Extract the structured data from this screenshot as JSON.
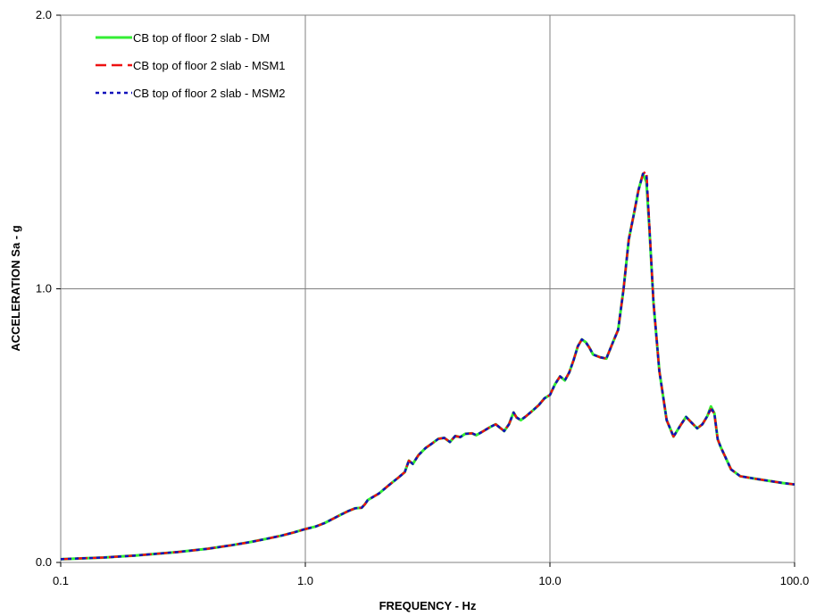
{
  "chart_data": {
    "type": "line",
    "xscale": "log",
    "xlim": [
      0.1,
      100.0
    ],
    "ylim": [
      0.0,
      2.0
    ],
    "xlabel": "FREQUENCY - Hz",
    "ylabel": "ACCELERATION Sa - g",
    "x_ticks": [
      "0.1",
      "1.0",
      "10.0",
      "100.0"
    ],
    "y_ticks": [
      "0.0",
      "1.0",
      "2.0"
    ],
    "grid": true,
    "legend_position": "top-left",
    "x": [
      0.1,
      0.15,
      0.2,
      0.3,
      0.4,
      0.5,
      0.6,
      0.7,
      0.8,
      0.9,
      1.0,
      1.1,
      1.2,
      1.3,
      1.4,
      1.5,
      1.6,
      1.7,
      1.75,
      1.8,
      2.0,
      2.2,
      2.4,
      2.55,
      2.65,
      2.75,
      2.9,
      3.1,
      3.3,
      3.5,
      3.7,
      3.9,
      4.1,
      4.3,
      4.5,
      4.8,
      5.0,
      5.3,
      5.7,
      6.0,
      6.5,
      6.8,
      7.1,
      7.3,
      7.6,
      8.0,
      8.5,
      9.0,
      9.5,
      10.0,
      10.5,
      11.0,
      11.5,
      12.0,
      12.5,
      13.0,
      13.5,
      14.0,
      14.5,
      15.0,
      16.0,
      17.0,
      18.0,
      19.0,
      20.0,
      21.0,
      22.0,
      23.0,
      24.0,
      24.8,
      25.5,
      26.5,
      28.0,
      30.0,
      32.0,
      34.0,
      36.0,
      38.0,
      40.0,
      42.0,
      44.0,
      45.5,
      47.0,
      48.5,
      50.0,
      55.0,
      60.0,
      70.0,
      80.0,
      90.0,
      100.0
    ],
    "series": [
      {
        "name": "CB top of floor 2 slab - DM",
        "color": "#33ee33",
        "dash": "solid",
        "values": [
          0.012,
          0.018,
          0.025,
          0.038,
          0.05,
          0.063,
          0.075,
          0.087,
          0.098,
          0.11,
          0.122,
          0.131,
          0.144,
          0.16,
          0.175,
          0.188,
          0.198,
          0.2,
          0.212,
          0.228,
          0.252,
          0.283,
          0.31,
          0.33,
          0.372,
          0.36,
          0.392,
          0.418,
          0.435,
          0.452,
          0.455,
          0.44,
          0.462,
          0.458,
          0.47,
          0.472,
          0.465,
          0.478,
          0.495,
          0.505,
          0.48,
          0.505,
          0.548,
          0.53,
          0.52,
          0.535,
          0.555,
          0.575,
          0.6,
          0.612,
          0.652,
          0.68,
          0.665,
          0.695,
          0.74,
          0.79,
          0.815,
          0.805,
          0.785,
          0.76,
          0.75,
          0.745,
          0.8,
          0.85,
          1.0,
          1.18,
          1.27,
          1.36,
          1.42,
          1.39,
          1.22,
          0.95,
          0.7,
          0.52,
          0.46,
          0.498,
          0.532,
          0.51,
          0.49,
          0.505,
          0.535,
          0.57,
          0.545,
          0.45,
          0.42,
          0.34,
          0.315,
          0.305,
          0.297,
          0.29,
          0.285
        ]
      },
      {
        "name": "CB top of floor 2 slab - MSM1",
        "color": "#ee1111",
        "dash": "long-dash",
        "values": [
          0.012,
          0.018,
          0.025,
          0.038,
          0.05,
          0.063,
          0.075,
          0.087,
          0.098,
          0.11,
          0.122,
          0.131,
          0.144,
          0.16,
          0.175,
          0.188,
          0.198,
          0.2,
          0.212,
          0.228,
          0.252,
          0.283,
          0.31,
          0.33,
          0.372,
          0.36,
          0.392,
          0.418,
          0.435,
          0.452,
          0.455,
          0.44,
          0.462,
          0.458,
          0.47,
          0.472,
          0.465,
          0.478,
          0.495,
          0.505,
          0.48,
          0.505,
          0.548,
          0.53,
          0.52,
          0.535,
          0.555,
          0.575,
          0.6,
          0.612,
          0.652,
          0.68,
          0.665,
          0.695,
          0.74,
          0.79,
          0.815,
          0.805,
          0.785,
          0.76,
          0.75,
          0.745,
          0.8,
          0.85,
          1.0,
          1.18,
          1.27,
          1.36,
          1.42,
          1.43,
          1.23,
          0.95,
          0.7,
          0.52,
          0.46,
          0.498,
          0.532,
          0.51,
          0.49,
          0.505,
          0.535,
          0.56,
          0.545,
          0.45,
          0.42,
          0.34,
          0.315,
          0.305,
          0.297,
          0.29,
          0.285
        ]
      },
      {
        "name": "CB top of floor 2 slab - MSM2",
        "color": "#1111bb",
        "dash": "short-dash",
        "values": [
          0.012,
          0.018,
          0.025,
          0.038,
          0.05,
          0.063,
          0.075,
          0.087,
          0.098,
          0.11,
          0.122,
          0.131,
          0.144,
          0.16,
          0.175,
          0.188,
          0.198,
          0.2,
          0.212,
          0.228,
          0.252,
          0.283,
          0.31,
          0.33,
          0.372,
          0.36,
          0.392,
          0.418,
          0.435,
          0.452,
          0.455,
          0.44,
          0.462,
          0.458,
          0.47,
          0.472,
          0.465,
          0.478,
          0.495,
          0.505,
          0.48,
          0.505,
          0.548,
          0.53,
          0.52,
          0.535,
          0.555,
          0.575,
          0.6,
          0.612,
          0.652,
          0.68,
          0.665,
          0.695,
          0.74,
          0.79,
          0.815,
          0.805,
          0.785,
          0.76,
          0.75,
          0.745,
          0.8,
          0.85,
          1.0,
          1.18,
          1.27,
          1.36,
          1.42,
          1.415,
          1.225,
          0.95,
          0.7,
          0.52,
          0.46,
          0.498,
          0.532,
          0.51,
          0.49,
          0.505,
          0.535,
          0.565,
          0.545,
          0.45,
          0.42,
          0.34,
          0.315,
          0.305,
          0.297,
          0.29,
          0.285
        ]
      }
    ]
  }
}
